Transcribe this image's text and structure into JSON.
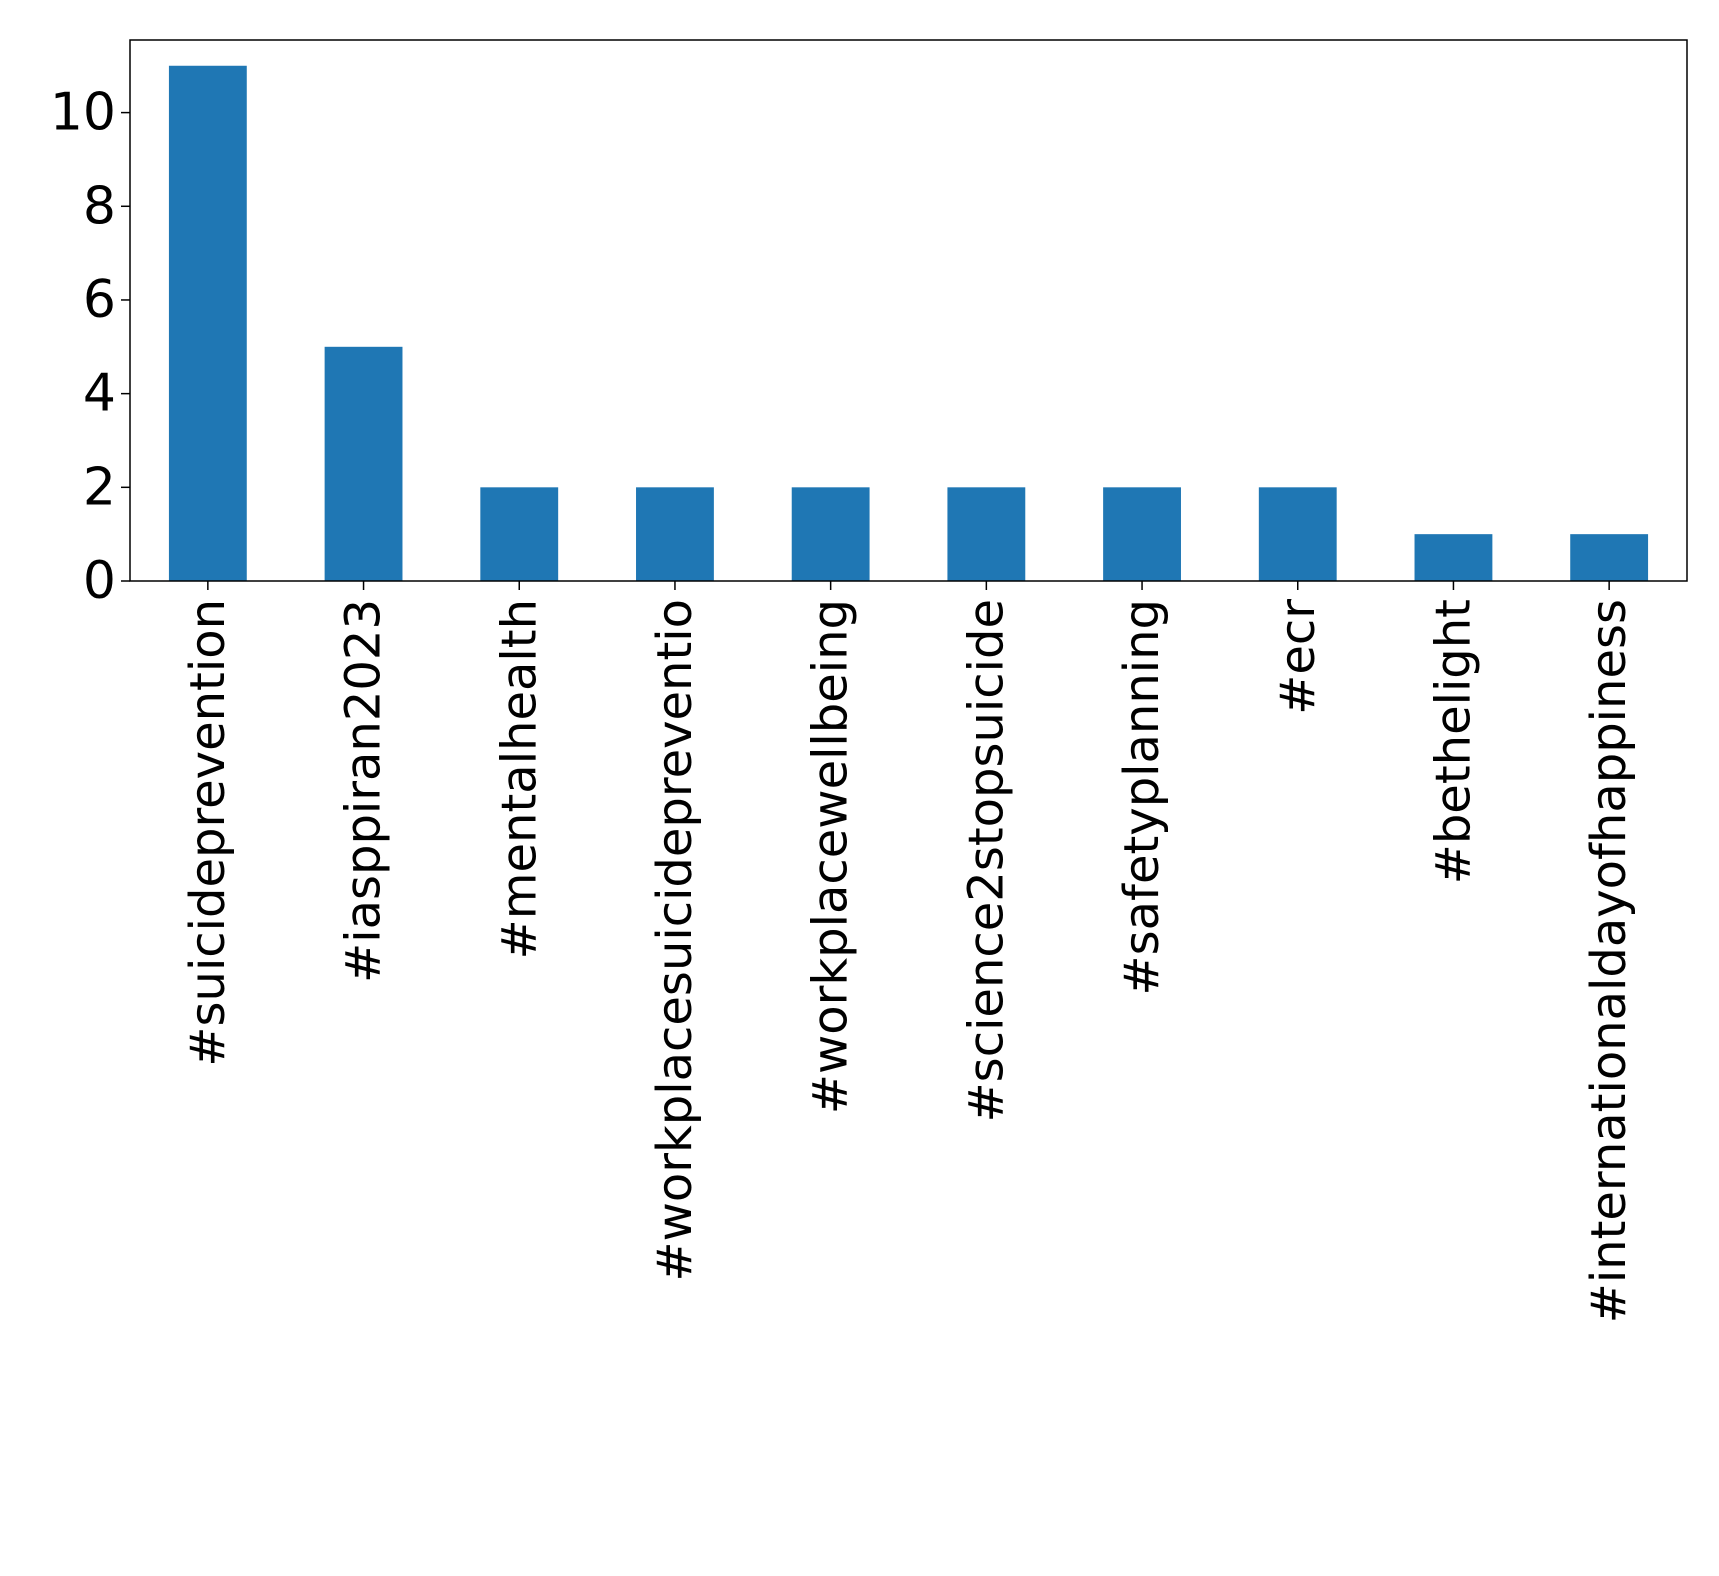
{
  "chart_data": {
    "type": "bar",
    "categories": [
      "#suicideprevention",
      "#iasppiran2023",
      "#mentalhealth",
      "#workplacesuicidepreventio",
      "#workplacewellbeing",
      "#science2stopsuicide",
      "#safetyplanning",
      "#ecr",
      "#bethelight",
      "#internationaldayofhappiness"
    ],
    "values": [
      11,
      5,
      2,
      2,
      2,
      2,
      2,
      2,
      1,
      1
    ],
    "title": "",
    "xlabel": "",
    "ylabel": "",
    "ylim": [
      0,
      11.55
    ],
    "yticks": [
      0,
      2,
      4,
      6,
      8,
      10
    ],
    "grid": false,
    "bar_color": "#1f77b4"
  }
}
